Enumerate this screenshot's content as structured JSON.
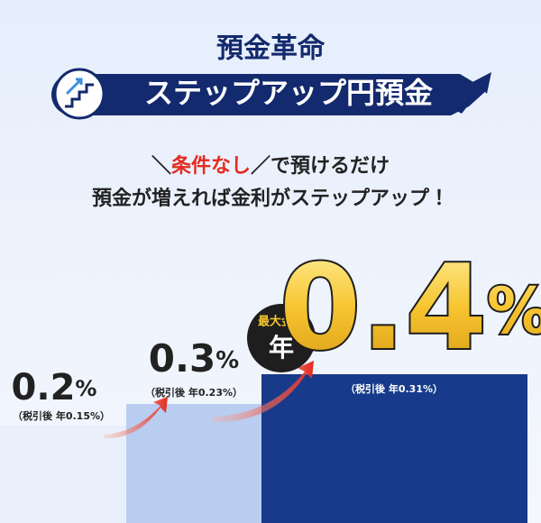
{
  "header": {
    "title": "預金革命",
    "banner": "ステップアップ円預金"
  },
  "subtitle": {
    "open": "＼",
    "highlight": "条件なし",
    "close": "／",
    "rest": "で預けるだけ",
    "line2": "預金が増えれば金利がステップアップ！"
  },
  "badge": {
    "top": "最大金利",
    "main": "年"
  },
  "tiers": [
    {
      "rate": "0.2",
      "unit": "%",
      "after_tax": "（税引後 年0.15%）"
    },
    {
      "rate": "0.3",
      "unit": "%",
      "after_tax": "（税引後 年0.23%）"
    },
    {
      "rate": "0.4",
      "unit": "%",
      "after_tax": "（税引後 年0.31%）"
    }
  ]
}
